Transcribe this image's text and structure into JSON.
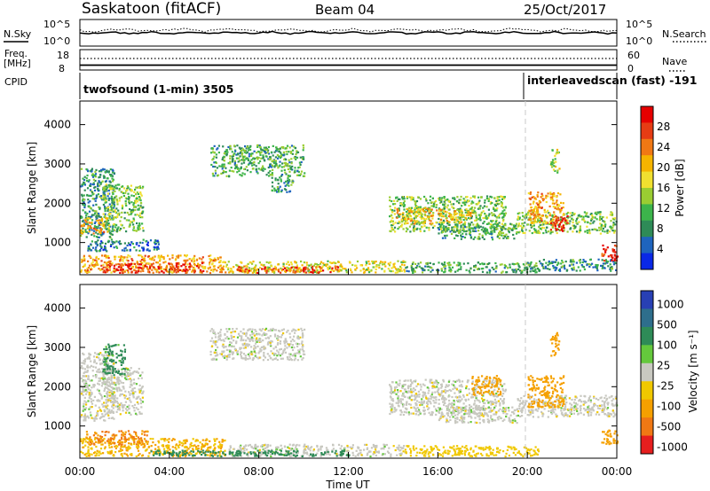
{
  "header": {
    "station": "Saskatoon (fitACF)",
    "beam": "Beam 04",
    "date": "25/Oct/2017"
  },
  "noise_panel": {
    "left_label": "N.Sky",
    "right_label": "N.Search",
    "left_ticks": [
      "10^5",
      "10^0"
    ],
    "right_ticks": [
      "10^5",
      "10^0"
    ]
  },
  "freq_panel": {
    "left_label_1": "Freq.",
    "left_label_2": "[MHz]",
    "right_label": "Nave",
    "left_ticks": [
      "18",
      "8"
    ],
    "right_ticks": [
      "60",
      "0"
    ]
  },
  "cpid_panel": {
    "label": "CPID",
    "modes": [
      {
        "text": "twofsound (1-min) 3505",
        "start_hour": 0
      },
      {
        "text": "interleavedscan (fast) -191",
        "start_hour": 20.0
      }
    ]
  },
  "colors": {
    "power": [
      "#0a28e6",
      "#1e64be",
      "#2e8b57",
      "#3cb44b",
      "#9acd32",
      "#f0e030",
      "#f5b400",
      "#f07814",
      "#e63c14",
      "#e60000"
    ],
    "velocity": [
      "#2840b4",
      "#2e6e8c",
      "#2e8b57",
      "#64c83c",
      "#c8c8c0",
      "#f0c800",
      "#f5a000",
      "#f07814",
      "#e61e1e"
    ]
  },
  "chart_data": [
    {
      "type": "heatmap",
      "name": "power",
      "ylabel": "Slant Range [km]",
      "ylim": [
        180,
        4600
      ],
      "yticks": [
        1000,
        2000,
        3000,
        4000
      ],
      "xlim": [
        0,
        24
      ],
      "colorbar_label": "Power [dB]",
      "colorbar_ticks": [
        "4",
        "8",
        "12",
        "16",
        "20",
        "24",
        "28"
      ],
      "colorbar_range": [
        0,
        30
      ],
      "regions": [
        {
          "x0": 0.0,
          "x1": 6.5,
          "r0": 250,
          "r1": 700,
          "v": 20
        },
        {
          "x0": 1.0,
          "x1": 5.5,
          "r0": 250,
          "r1": 500,
          "v": 26
        },
        {
          "x0": 6.5,
          "x1": 14.5,
          "r0": 250,
          "r1": 550,
          "v": 16
        },
        {
          "x0": 7.0,
          "x1": 11.5,
          "r0": 250,
          "r1": 420,
          "v": 24
        },
        {
          "x0": 14.5,
          "x1": 20.5,
          "r0": 250,
          "r1": 520,
          "v": 10
        },
        {
          "x0": 20.5,
          "x1": 24.0,
          "r0": 300,
          "r1": 600,
          "v": 8
        },
        {
          "x0": 23.3,
          "x1": 24.0,
          "r0": 550,
          "r1": 950,
          "v": 27
        },
        {
          "x0": 0.0,
          "x1": 1.5,
          "r0": 1150,
          "r1": 2900,
          "v": 8
        },
        {
          "x0": 0.0,
          "x1": 1.2,
          "r0": 1250,
          "r1": 1650,
          "v": 20
        },
        {
          "x0": 1.0,
          "x1": 2.8,
          "r0": 1300,
          "r1": 2500,
          "v": 12
        },
        {
          "x0": 0.3,
          "x1": 3.5,
          "r0": 800,
          "r1": 1100,
          "v": 6
        },
        {
          "x0": 5.8,
          "x1": 10.0,
          "r0": 2700,
          "r1": 3500,
          "v": 10
        },
        {
          "x0": 8.5,
          "x1": 9.5,
          "r0": 2300,
          "r1": 2700,
          "v": 8
        },
        {
          "x0": 13.8,
          "x1": 19.0,
          "r0": 1300,
          "r1": 2200,
          "v": 12
        },
        {
          "x0": 14.0,
          "x1": 17.5,
          "r0": 1500,
          "r1": 1900,
          "v": 18
        },
        {
          "x0": 16.0,
          "x1": 19.5,
          "r0": 1100,
          "r1": 1500,
          "v": 10
        },
        {
          "x0": 19.5,
          "x1": 24.0,
          "r0": 1250,
          "r1": 1800,
          "v": 12
        },
        {
          "x0": 20.0,
          "x1": 21.6,
          "r0": 1500,
          "r1": 2300,
          "v": 20
        },
        {
          "x0": 21.0,
          "x1": 21.8,
          "r0": 1300,
          "r1": 1700,
          "v": 26
        },
        {
          "x0": 21.0,
          "x1": 21.4,
          "r0": 2800,
          "r1": 3400,
          "v": 14
        }
      ]
    },
    {
      "type": "heatmap",
      "name": "velocity",
      "ylabel": "Slant Range [km]",
      "ylim": [
        180,
        4600
      ],
      "yticks": [
        1000,
        2000,
        3000,
        4000
      ],
      "xlim": [
        0,
        24
      ],
      "xticks": [
        "00:00",
        "04:00",
        "08:00",
        "12:00",
        "16:00",
        "20:00",
        "00:00"
      ],
      "xlabel": "Time UT",
      "colorbar_label": "Velocity [m s⁻¹]",
      "colorbar_ticks": [
        "1000",
        "500",
        "100",
        "25",
        "-25",
        "-100",
        "-500",
        "-1000"
      ],
      "regions": [
        {
          "x0": 0.0,
          "x1": 6.5,
          "r0": 250,
          "r1": 700,
          "v": -100
        },
        {
          "x0": 0.2,
          "x1": 3.0,
          "r0": 550,
          "r1": 900,
          "v": -300
        },
        {
          "x0": 6.5,
          "x1": 14.5,
          "r0": 250,
          "r1": 550,
          "v": 0
        },
        {
          "x0": 3.0,
          "x1": 12.0,
          "r0": 250,
          "r1": 400,
          "v": 150
        },
        {
          "x0": 14.5,
          "x1": 20.5,
          "r0": 250,
          "r1": 520,
          "v": -60
        },
        {
          "x0": 23.3,
          "x1": 24.0,
          "r0": 550,
          "r1": 950,
          "v": -150
        },
        {
          "x0": 0.0,
          "x1": 1.5,
          "r0": 1150,
          "r1": 2900,
          "v": 0
        },
        {
          "x0": 1.0,
          "x1": 2.8,
          "r0": 1300,
          "r1": 2500,
          "v": 0
        },
        {
          "x0": 1.0,
          "x1": 2.0,
          "r0": 2300,
          "r1": 3100,
          "v": 120
        },
        {
          "x0": 5.8,
          "x1": 10.0,
          "r0": 2700,
          "r1": 3500,
          "v": 0
        },
        {
          "x0": 13.8,
          "x1": 19.0,
          "r0": 1300,
          "r1": 2200,
          "v": 0
        },
        {
          "x0": 16.0,
          "x1": 19.5,
          "r0": 1100,
          "r1": 1500,
          "v": 0
        },
        {
          "x0": 17.5,
          "x1": 18.8,
          "r0": 1800,
          "r1": 2300,
          "v": -250
        },
        {
          "x0": 19.5,
          "x1": 24.0,
          "r0": 1250,
          "r1": 1800,
          "v": 0
        },
        {
          "x0": 20.0,
          "x1": 21.6,
          "r0": 1500,
          "r1": 2300,
          "v": -150
        },
        {
          "x0": 21.0,
          "x1": 21.4,
          "r0": 2800,
          "r1": 3400,
          "v": -200
        }
      ]
    }
  ]
}
